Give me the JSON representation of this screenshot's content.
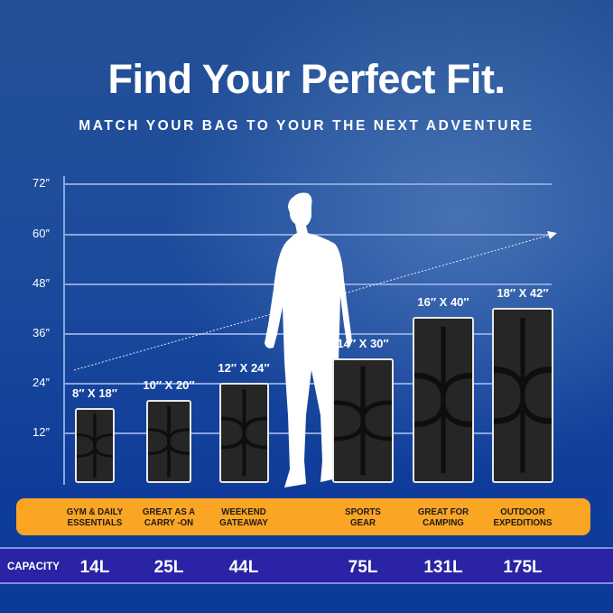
{
  "title": "Find Your Perfect Fit.",
  "subtitle": "MATCH YOUR BAG TO YOUR THE NEXT ADVENTURE",
  "axis_ticks": [
    "72″",
    "60″",
    "48″",
    "36″",
    "24″",
    "12″"
  ],
  "bags": [
    {
      "dimensions": "8″ X 18″",
      "use": [
        "GYM & DAILY",
        "ESSENTIALS"
      ],
      "capacity": "14L",
      "width_in": 8,
      "height_in": 18
    },
    {
      "dimensions": "10″ X 20″",
      "use": [
        "GREAT AS A",
        "CARRY -ON"
      ],
      "capacity": "25L",
      "width_in": 10,
      "height_in": 20
    },
    {
      "dimensions": "12″ X 24″",
      "use": [
        "WEEKEND",
        "GATEAWAY"
      ],
      "capacity": "44L",
      "width_in": 12,
      "height_in": 24
    },
    {
      "dimensions": "14″ X 30″",
      "use": [
        "SPORTS",
        "GEAR"
      ],
      "capacity": "75L",
      "width_in": 14,
      "height_in": 30
    },
    {
      "dimensions": "16″ X 40″",
      "use": [
        "GREAT FOR",
        "CAMPING"
      ],
      "capacity": "131L",
      "width_in": 16,
      "height_in": 40
    },
    {
      "dimensions": "18″ X 42″",
      "use": [
        "OUTDOOR",
        "EXPEDITIONS"
      ],
      "capacity": "175L",
      "width_in": 18,
      "height_in": 42
    }
  ],
  "capacity_label": "CAPACITY",
  "colors": {
    "background": "#1d4c9c",
    "use_band": "#fba524",
    "capacity_band": "#2a23a6",
    "bag": "#262626"
  }
}
